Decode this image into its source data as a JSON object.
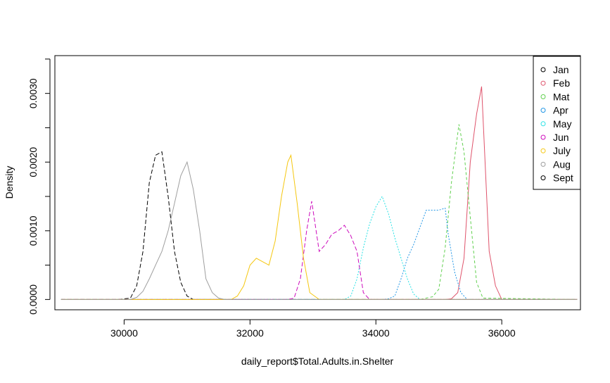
{
  "chart_data": {
    "type": "line",
    "title": "",
    "xlabel": "daily_report$Total.Adults.in.Shelter",
    "ylabel": "Density",
    "xlim": [
      28900,
      37250
    ],
    "ylim": [
      -0.00015,
      0.00355
    ],
    "x_ticks": [
      30000,
      32000,
      34000,
      36000
    ],
    "x_tick_labels": [
      "30000",
      "32000",
      "34000",
      "36000"
    ],
    "y_ticks": [
      0,
      0.001,
      0.002,
      0.003
    ],
    "y_tick_labels": [
      "0.0000",
      "0.0010",
      "0.0020",
      "0.0030"
    ],
    "grid": false,
    "legend_position": "top-right",
    "series": [
      {
        "name": "Jan",
        "color": "#000000",
        "dash": "6,3",
        "x": [
          29000,
          29900,
          30100,
          30200,
          30300,
          30400,
          30500,
          30600,
          30700,
          30800,
          30900,
          31000,
          31100,
          31200,
          37200
        ],
        "y": [
          0,
          0,
          2e-05,
          0.0002,
          0.0007,
          0.0017,
          0.0021,
          0.00215,
          0.0015,
          0.0007,
          0.00025,
          5e-05,
          0,
          0,
          0
        ]
      },
      {
        "name": "Feb",
        "color": "#DF536B",
        "dash": "",
        "x": [
          29000,
          35100,
          35200,
          35300,
          35400,
          35500,
          35600,
          35680,
          35800,
          35900,
          36000,
          37200
        ],
        "y": [
          0,
          0,
          1e-05,
          0.0001,
          0.0006,
          0.002,
          0.0027,
          0.0031,
          0.0007,
          0.0002,
          0,
          0
        ]
      },
      {
        "name": "Mat",
        "color": "#61D04F",
        "dash": "4,3",
        "x": [
          29000,
          34700,
          34800,
          34900,
          35000,
          35100,
          35200,
          35320,
          35400,
          35500,
          35600,
          35700,
          37200
        ],
        "y": [
          0,
          0,
          2e-05,
          4e-05,
          0.00015,
          0.00075,
          0.0017,
          0.00255,
          0.00215,
          0.0012,
          0.00025,
          2e-05,
          0
        ]
      },
      {
        "name": "Apr",
        "color": "#2297E6",
        "dash": "2,2",
        "x": [
          29000,
          34100,
          34200,
          34300,
          34400,
          34500,
          34600,
          34700,
          34800,
          34900,
          35000,
          35100,
          35150,
          35250,
          35350,
          35450,
          37200
        ],
        "y": [
          0,
          0,
          1e-05,
          5e-05,
          0.0003,
          0.0006,
          0.0008,
          0.00105,
          0.0013,
          0.0013,
          0.0013,
          0.00133,
          0.00095,
          0.0004,
          0.0001,
          0,
          0
        ]
      },
      {
        "name": "May",
        "color": "#28E2E5",
        "dash": "2,2",
        "x": [
          29000,
          33500,
          33600,
          33700,
          33800,
          33900,
          34000,
          34100,
          34200,
          34300,
          34400,
          34500,
          34600,
          34700,
          34800,
          37200
        ],
        "y": [
          0,
          0,
          5e-05,
          0.0003,
          0.00075,
          0.0011,
          0.00135,
          0.0015,
          0.00125,
          0.0009,
          0.0006,
          0.0003,
          8e-05,
          0,
          0,
          0
        ]
      },
      {
        "name": "Jun",
        "color": "#CD0BBC",
        "dash": "6,3",
        "x": [
          29000,
          32600,
          32700,
          32800,
          32900,
          32980,
          33100,
          33200,
          33300,
          33400,
          33500,
          33600,
          33700,
          33800,
          33900,
          37200
        ],
        "y": [
          0,
          0,
          2e-05,
          0.0003,
          0.001,
          0.00143,
          0.0007,
          0.0008,
          0.00095,
          0.001,
          0.00108,
          0.00093,
          0.0007,
          0.0001,
          0,
          0
        ]
      },
      {
        "name": "July",
        "color": "#F5C710",
        "dash": "",
        "x": [
          29000,
          31700,
          31800,
          31900,
          32000,
          32100,
          32200,
          32300,
          32400,
          32500,
          32600,
          32650,
          32750,
          32850,
          32950,
          33100,
          37200
        ],
        "y": [
          0,
          0,
          5e-05,
          0.0002,
          0.0005,
          0.0006,
          0.00055,
          0.0005,
          0.00085,
          0.0015,
          0.002,
          0.0021,
          0.0014,
          0.0006,
          0.0001,
          0,
          0
        ]
      },
      {
        "name": "Aug",
        "color": "#9E9E9E",
        "dash": "",
        "x": [
          29000,
          30100,
          30200,
          30300,
          30400,
          30500,
          30600,
          30700,
          30800,
          30900,
          31000,
          31100,
          31200,
          31300,
          31400,
          31500,
          31600,
          37200
        ],
        "y": [
          0,
          0,
          3e-05,
          0.00012,
          0.0003,
          0.0005,
          0.0007,
          0.001,
          0.0014,
          0.0018,
          0.002,
          0.0016,
          0.001,
          0.0003,
          0.0001,
          2e-05,
          0,
          0
        ]
      },
      {
        "name": "Sept",
        "color": "#000000",
        "dash": "",
        "x": [],
        "y": []
      }
    ]
  }
}
